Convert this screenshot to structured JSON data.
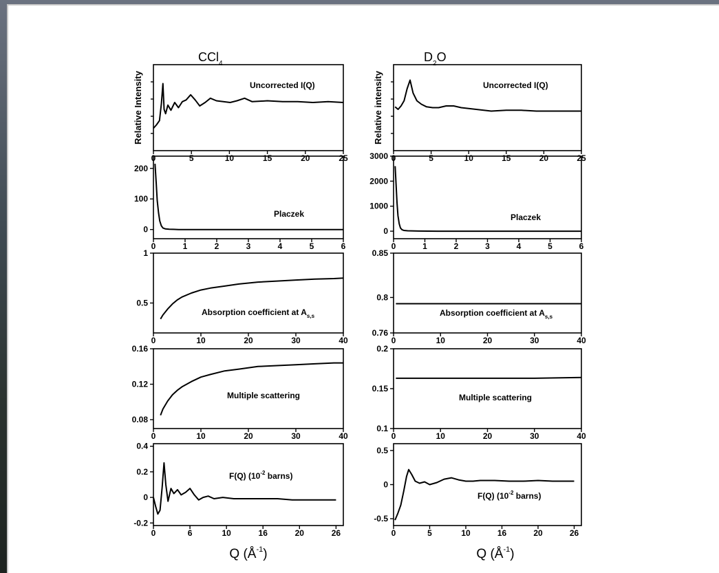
{
  "chart_data": [
    {
      "column": "CCl4",
      "column_title": "CCl",
      "column_title_sub": "4",
      "type": "line",
      "ylabel": "Relative Intensity",
      "label": "Uncorrected I(Q)",
      "xlim": [
        0,
        25
      ],
      "ylim": [
        0,
        1
      ],
      "xticks": [
        0,
        5,
        10,
        15,
        20,
        25
      ],
      "yticks": [],
      "show_minor_yticks": true,
      "x": [
        0,
        0.4,
        0.8,
        1.05,
        1.25,
        1.4,
        1.6,
        1.9,
        2.3,
        2.8,
        3.3,
        3.8,
        4.3,
        4.9,
        5.5,
        6.1,
        6.8,
        7.5,
        8.3,
        9.2,
        10.1,
        11,
        12,
        13,
        15,
        17,
        19,
        21,
        23,
        25
      ],
      "values": [
        0.26,
        0.3,
        0.35,
        0.55,
        0.78,
        0.48,
        0.43,
        0.53,
        0.47,
        0.56,
        0.5,
        0.57,
        0.59,
        0.65,
        0.59,
        0.52,
        0.56,
        0.61,
        0.58,
        0.57,
        0.56,
        0.58,
        0.61,
        0.57,
        0.58,
        0.57,
        0.57,
        0.56,
        0.57,
        0.56
      ]
    },
    {
      "column": "D2O",
      "column_title": "D",
      "column_title_sub": "2",
      "column_title_tail": "O",
      "type": "line",
      "ylabel": "Relative intensity",
      "label": "Uncorrected I(Q)",
      "xlim": [
        0,
        25
      ],
      "ylim": [
        0,
        1
      ],
      "xticks": [
        0,
        5,
        10,
        15,
        20,
        25
      ],
      "yticks": [],
      "show_minor_yticks": true,
      "x": [
        0.2,
        0.6,
        1.0,
        1.4,
        1.8,
        2.2,
        2.6,
        3.1,
        3.7,
        4.4,
        5.2,
        6,
        7,
        8,
        9,
        10,
        11,
        12,
        13,
        15,
        17,
        19,
        21,
        23,
        25
      ],
      "values": [
        0.51,
        0.48,
        0.52,
        0.58,
        0.72,
        0.82,
        0.67,
        0.58,
        0.54,
        0.51,
        0.5,
        0.5,
        0.52,
        0.52,
        0.5,
        0.49,
        0.48,
        0.47,
        0.46,
        0.47,
        0.47,
        0.46,
        0.46,
        0.46,
        0.46
      ]
    },
    {
      "column": "CCl4",
      "type": "line",
      "label": "Placzek",
      "xlim": [
        0,
        6
      ],
      "ylim": [
        -30,
        240
      ],
      "xticks": [
        0,
        1,
        2,
        3,
        4,
        5,
        6
      ],
      "yticks": [
        0,
        100,
        200
      ],
      "x": [
        0.05,
        0.09,
        0.12,
        0.16,
        0.2,
        0.25,
        0.3,
        0.38,
        0.5,
        0.8,
        1.5,
        3,
        6
      ],
      "values": [
        215,
        150,
        95,
        55,
        28,
        12,
        5,
        2,
        1,
        0,
        0,
        0,
        0
      ]
    },
    {
      "column": "D2O",
      "type": "line",
      "label": "Placzek",
      "xlim": [
        0,
        6
      ],
      "ylim": [
        -300,
        3000
      ],
      "xticks": [
        0,
        1,
        2,
        3,
        4,
        5,
        6
      ],
      "yticks": [
        0,
        1000,
        2000,
        3000
      ],
      "x": [
        0.05,
        0.08,
        0.11,
        0.14,
        0.18,
        0.22,
        0.27,
        0.33,
        0.45,
        0.8,
        1.5,
        3,
        6
      ],
      "values": [
        2600,
        1900,
        1150,
        620,
        300,
        130,
        60,
        30,
        15,
        5,
        0,
        0,
        0
      ]
    },
    {
      "column": "CCl4",
      "type": "line",
      "label": "Absorption coefficient at A",
      "label_sub": "s,s",
      "xlim": [
        0,
        40
      ],
      "ylim": [
        0.2,
        1.0
      ],
      "xticks": [
        0,
        10,
        20,
        30,
        40
      ],
      "yticks": [
        0.5,
        1.0
      ],
      "x": [
        1.5,
        2,
        3,
        4,
        5,
        6,
        8,
        10,
        12,
        15,
        18,
        22,
        26,
        30,
        34,
        38,
        40
      ],
      "values": [
        0.34,
        0.38,
        0.44,
        0.49,
        0.53,
        0.56,
        0.6,
        0.63,
        0.65,
        0.67,
        0.69,
        0.71,
        0.72,
        0.73,
        0.74,
        0.745,
        0.75
      ]
    },
    {
      "column": "D2O",
      "type": "line",
      "label": "Absorption coefficient at A",
      "label_sub": "s,s",
      "xlim": [
        0,
        40
      ],
      "ylim": [
        0.76,
        0.85
      ],
      "xticks": [
        0,
        10,
        20,
        30,
        40
      ],
      "yticks": [
        0.76,
        0.8,
        0.85
      ],
      "x": [
        0.5,
        10,
        20,
        30,
        40
      ],
      "values": [
        0.793,
        0.793,
        0.793,
        0.793,
        0.793
      ]
    },
    {
      "column": "CCl4",
      "type": "line",
      "label": "Multiple scattering",
      "xlim": [
        0,
        40
      ],
      "ylim": [
        0.07,
        0.16
      ],
      "xticks": [
        0,
        10,
        20,
        30,
        40
      ],
      "yticks": [
        0.08,
        0.12,
        0.16
      ],
      "x": [
        1.5,
        2,
        3,
        4,
        5,
        6,
        8,
        10,
        12,
        15,
        18,
        22,
        26,
        30,
        34,
        38,
        40
      ],
      "values": [
        0.085,
        0.092,
        0.101,
        0.108,
        0.113,
        0.117,
        0.123,
        0.128,
        0.131,
        0.135,
        0.137,
        0.14,
        0.141,
        0.142,
        0.143,
        0.144,
        0.144
      ]
    },
    {
      "column": "D2O",
      "type": "line",
      "label": "Multiple scattering",
      "xlim": [
        0,
        40
      ],
      "ylim": [
        0.1,
        0.2
      ],
      "xticks": [
        0,
        10,
        20,
        30,
        40
      ],
      "yticks": [
        0.1,
        0.15,
        0.2
      ],
      "x": [
        0.5,
        10,
        20,
        30,
        40
      ],
      "values": [
        0.163,
        0.163,
        0.163,
        0.163,
        0.164
      ]
    },
    {
      "column": "CCl4",
      "type": "line",
      "label": "F(Q) (10",
      "label_sup": "-2",
      "label_tail": " barns)",
      "xlim": [
        0,
        26
      ],
      "ylim": [
        -0.22,
        0.42
      ],
      "xticks": [
        0,
        6,
        10,
        16,
        20,
        26
      ],
      "xtick_positions": [
        0,
        5,
        10,
        15,
        20,
        25
      ],
      "yticks": [
        -0.2,
        0.0,
        0.2,
        0.4
      ],
      "x": [
        0,
        0.3,
        0.6,
        0.9,
        1.2,
        1.45,
        1.7,
        2.0,
        2.4,
        2.8,
        3.3,
        3.8,
        4.4,
        5.0,
        5.6,
        6.2,
        6.8,
        7.5,
        8.3,
        9.5,
        11,
        13,
        15,
        17,
        19,
        21,
        23,
        25
      ],
      "values": [
        0.0,
        -0.07,
        -0.13,
        -0.1,
        0.08,
        0.27,
        0.1,
        -0.03,
        0.07,
        0.03,
        0.06,
        0.02,
        0.04,
        0.07,
        0.02,
        -0.02,
        0.0,
        0.01,
        -0.01,
        0.0,
        -0.01,
        -0.01,
        -0.01,
        -0.01,
        -0.02,
        -0.02,
        -0.02,
        -0.02
      ]
    },
    {
      "column": "D2O",
      "type": "line",
      "label": "F(Q) (10",
      "label_sup": "-2",
      "label_tail": " barns)",
      "xlim": [
        0,
        26
      ],
      "ylim": [
        -0.6,
        0.6
      ],
      "xticks": [
        0,
        5,
        10,
        16,
        20,
        26
      ],
      "xtick_positions": [
        0,
        5,
        10,
        15,
        20,
        25
      ],
      "yticks": [
        -0.5,
        0.0,
        0.5
      ],
      "x": [
        0.2,
        0.6,
        1.0,
        1.4,
        1.8,
        2.1,
        2.5,
        3.0,
        3.6,
        4.3,
        5.0,
        6,
        7,
        8,
        9,
        10,
        11,
        12,
        14,
        16,
        18,
        20,
        22,
        24,
        25
      ],
      "values": [
        -0.52,
        -0.42,
        -0.3,
        -0.1,
        0.12,
        0.22,
        0.15,
        0.05,
        0.02,
        0.04,
        0.0,
        0.03,
        0.08,
        0.1,
        0.07,
        0.05,
        0.05,
        0.06,
        0.06,
        0.05,
        0.05,
        0.06,
        0.05,
        0.05,
        0.05
      ]
    }
  ],
  "xlabel_text": "Q (Å",
  "xlabel_sup": "-1",
  "xlabel_tail": ")"
}
